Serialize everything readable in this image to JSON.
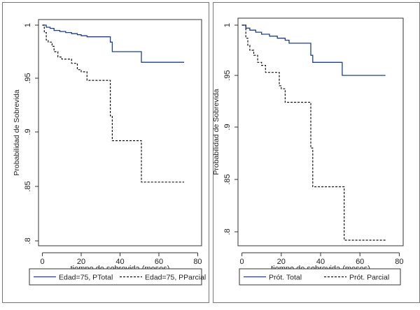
{
  "chart_data": [
    {
      "type": "line",
      "xlabel": "tiempo de sobrevida  (meses)",
      "ylabel": "Probabilidad de Sobrevida",
      "xlim": [
        -2,
        82
      ],
      "ylim": [
        0.795,
        1.005
      ],
      "xticks": [
        "0",
        "20",
        "40",
        "60",
        "80"
      ],
      "yticks": [
        "1",
        ".95",
        ".9",
        ".85",
        ".8"
      ],
      "legend_position": "bottom",
      "series": [
        {
          "name": "Edad=75, PTotal",
          "style": "solid",
          "x": [
            0,
            2,
            4,
            6,
            9,
            12,
            15,
            18,
            20,
            23,
            35,
            36,
            50,
            51,
            73
          ],
          "y": [
            1,
            0.998,
            0.997,
            0.995,
            0.994,
            0.993,
            0.992,
            0.991,
            0.99,
            0.989,
            0.984,
            0.975,
            0.975,
            0.965,
            0.965
          ]
        },
        {
          "name": "Edad=75, PParcial",
          "style": "dashed",
          "x": [
            0,
            1,
            2,
            3,
            5,
            6,
            8,
            10,
            12,
            15,
            18,
            20,
            23,
            34,
            35,
            36,
            50,
            51,
            73
          ],
          "y": [
            1,
            0.993,
            0.986,
            0.984,
            0.98,
            0.975,
            0.97,
            0.968,
            0.968,
            0.964,
            0.958,
            0.956,
            0.948,
            0.948,
            0.915,
            0.892,
            0.892,
            0.854,
            0.854
          ]
        }
      ]
    },
    {
      "type": "line",
      "xlabel": "tiempo de sobrevida  (meses)",
      "ylabel": "Probabilidad de Sobrevida",
      "xlim": [
        -2,
        82
      ],
      "ylim": [
        0.79,
        1.005
      ],
      "xticks": [
        "0",
        "20",
        "40",
        "60",
        "80"
      ],
      "yticks": [
        "1",
        ".95",
        ".9",
        ".85",
        ".8"
      ],
      "legend_position": "bottom",
      "series": [
        {
          "name": "Prót. Total",
          "style": "solid",
          "x": [
            0,
            2,
            4,
            7,
            10,
            14,
            18,
            22,
            24,
            35,
            36,
            50,
            51,
            73
          ],
          "y": [
            1,
            0.997,
            0.995,
            0.993,
            0.991,
            0.989,
            0.987,
            0.985,
            0.982,
            0.97,
            0.963,
            0.963,
            0.95,
            0.95
          ]
        },
        {
          "name": "Prót. Parcial",
          "style": "dashed",
          "x": [
            0,
            2,
            3,
            4,
            6,
            8,
            10,
            12,
            14,
            17,
            19,
            20,
            22,
            24,
            34,
            35,
            36,
            51,
            52,
            73
          ],
          "y": [
            1,
            0.987,
            0.98,
            0.975,
            0.97,
            0.963,
            0.96,
            0.953,
            0.953,
            0.953,
            0.94,
            0.937,
            0.924,
            0.924,
            0.924,
            0.88,
            0.843,
            0.843,
            0.792,
            0.792
          ]
        }
      ]
    }
  ]
}
